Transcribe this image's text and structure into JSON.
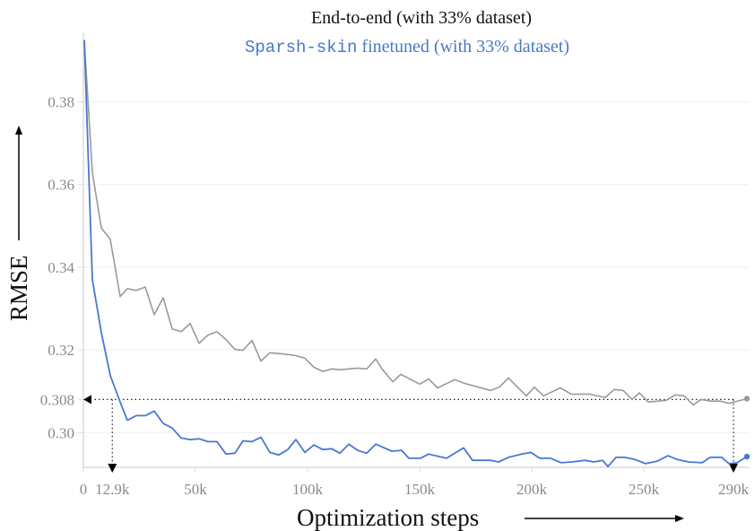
{
  "chart_data": {
    "type": "line",
    "title": "End-to-end (with 33% dataset)",
    "subtitle": {
      "mono_part": "Sparsh-skin",
      "rest": " finetuned (with 33% dataset)"
    },
    "xlabel": "Optimization steps",
    "ylabel": "RMSE",
    "xlim": [
      0,
      297
    ],
    "ylim": [
      0.2916,
      0.3966
    ],
    "x_unit": "k steps",
    "grid": "horizontal",
    "x_ticks": [
      {
        "value": 0,
        "label": "0"
      },
      {
        "value": 12.9,
        "label": "12.9k"
      },
      {
        "value": 50,
        "label": "50k"
      },
      {
        "value": 100,
        "label": "100k"
      },
      {
        "value": 150,
        "label": "150k"
      },
      {
        "value": 200,
        "label": "200k"
      },
      {
        "value": 250,
        "label": "250k"
      },
      {
        "value": 290,
        "label": "290k"
      }
    ],
    "y_ticks": [
      {
        "value": 0.3,
        "label": "0.30"
      },
      {
        "value": 0.308,
        "label": "0.308"
      },
      {
        "value": 0.32,
        "label": "0.32"
      },
      {
        "value": 0.34,
        "label": "0.34"
      },
      {
        "value": 0.36,
        "label": "0.36"
      },
      {
        "value": 0.38,
        "label": "0.38"
      }
    ],
    "annotations": [
      {
        "type": "dotted-horizontal-arrow",
        "y": 0.308,
        "from_x": 290,
        "to_x": 0
      },
      {
        "type": "dotted-vertical-arrow",
        "x": 12.9,
        "from_y": 0.308,
        "to": "x-axis"
      },
      {
        "type": "dotted-vertical-arrow",
        "x": 290,
        "from_y": 0.308,
        "to": "x-axis"
      }
    ],
    "series": [
      {
        "name": "End-to-end (with 33% dataset)",
        "color": "#9a9a9a",
        "x": [
          0.4,
          4,
          8,
          12,
          16.4,
          19.6,
          23.6,
          27.6,
          31.6,
          35.6,
          39.6,
          43.6,
          47.6,
          51.6,
          55.6,
          59.6,
          63.6,
          67.6,
          71.2,
          75.2,
          79.2,
          83.2,
          87.2,
          91.2,
          94.8,
          98.8,
          102.8,
          106.8,
          110.8,
          114.4,
          118.4,
          122.4,
          126.4,
          130.4,
          133.2,
          138,
          141.6,
          150,
          154,
          158,
          165.6,
          170,
          181.6,
          185.6,
          189.6,
          197.6,
          201.2,
          205.2,
          212.8,
          217.6,
          225.6,
          232.8,
          236.8,
          240.8,
          244.8,
          248,
          252,
          260,
          264,
          268,
          272,
          275.6,
          280,
          284,
          288,
          296
        ],
        "y": [
          0.3949,
          0.3629,
          0.3495,
          0.3467,
          0.3329,
          0.3348,
          0.3344,
          0.3352,
          0.3285,
          0.3326,
          0.3251,
          0.3244,
          0.3264,
          0.3216,
          0.3236,
          0.3244,
          0.3225,
          0.3201,
          0.3199,
          0.3223,
          0.3173,
          0.3193,
          0.3191,
          0.3189,
          0.3186,
          0.318,
          0.3158,
          0.3148,
          0.3154,
          0.3152,
          0.3154,
          0.3156,
          0.3154,
          0.3178,
          0.3154,
          0.3123,
          0.3141,
          0.3117,
          0.313,
          0.3108,
          0.3128,
          0.3119,
          0.3102,
          0.311,
          0.3132,
          0.3089,
          0.311,
          0.3089,
          0.3108,
          0.3093,
          0.3093,
          0.3085,
          0.3104,
          0.3102,
          0.308,
          0.3096,
          0.3074,
          0.3078,
          0.3091,
          0.3089,
          0.3067,
          0.308,
          0.3076,
          0.3076,
          0.3071,
          0.3082
        ]
      },
      {
        "name": "Sparsh-skin finetuned (with 33% dataset)",
        "color": "#4a78d0",
        "x": [
          0.4,
          4,
          8,
          12,
          16.4,
          19.6,
          23.6,
          27.6,
          31.6,
          35.6,
          39.6,
          43.6,
          47.6,
          51.6,
          55.6,
          59.6,
          63.6,
          67.6,
          71.2,
          75.2,
          79.2,
          83.2,
          87.2,
          91.2,
          94.8,
          98.8,
          102.8,
          106.8,
          110.8,
          114.4,
          118.4,
          122.4,
          126.4,
          130.4,
          137.6,
          142,
          145.2,
          150.4,
          154,
          162,
          169.6,
          173.6,
          181.6,
          185.2,
          189.6,
          195.6,
          199.6,
          203.6,
          208.4,
          213.2,
          218,
          224,
          227.6,
          231.6,
          234,
          237.6,
          241.6,
          246,
          250.8,
          256,
          260.8,
          264.8,
          270,
          276,
          279.6,
          284.8,
          288,
          291.6,
          296
        ],
        "y": [
          0.3949,
          0.337,
          0.3242,
          0.3138,
          0.3074,
          0.303,
          0.3041,
          0.3041,
          0.3052,
          0.3022,
          0.3011,
          0.2987,
          0.2983,
          0.2985,
          0.2978,
          0.2978,
          0.2948,
          0.295,
          0.298,
          0.2978,
          0.2989,
          0.2952,
          0.2946,
          0.2959,
          0.2983,
          0.2952,
          0.297,
          0.2959,
          0.2961,
          0.295,
          0.2972,
          0.2957,
          0.295,
          0.2972,
          0.2955,
          0.2957,
          0.2938,
          0.2938,
          0.2948,
          0.2938,
          0.2963,
          0.2933,
          0.2933,
          0.2929,
          0.294,
          0.2948,
          0.2952,
          0.2938,
          0.2938,
          0.2927,
          0.2929,
          0.2933,
          0.2929,
          0.2933,
          0.2918,
          0.294,
          0.294,
          0.2935,
          0.2925,
          0.2931,
          0.2944,
          0.2935,
          0.2929,
          0.2927,
          0.294,
          0.294,
          0.2925,
          0.2927,
          0.2942
        ]
      }
    ]
  }
}
